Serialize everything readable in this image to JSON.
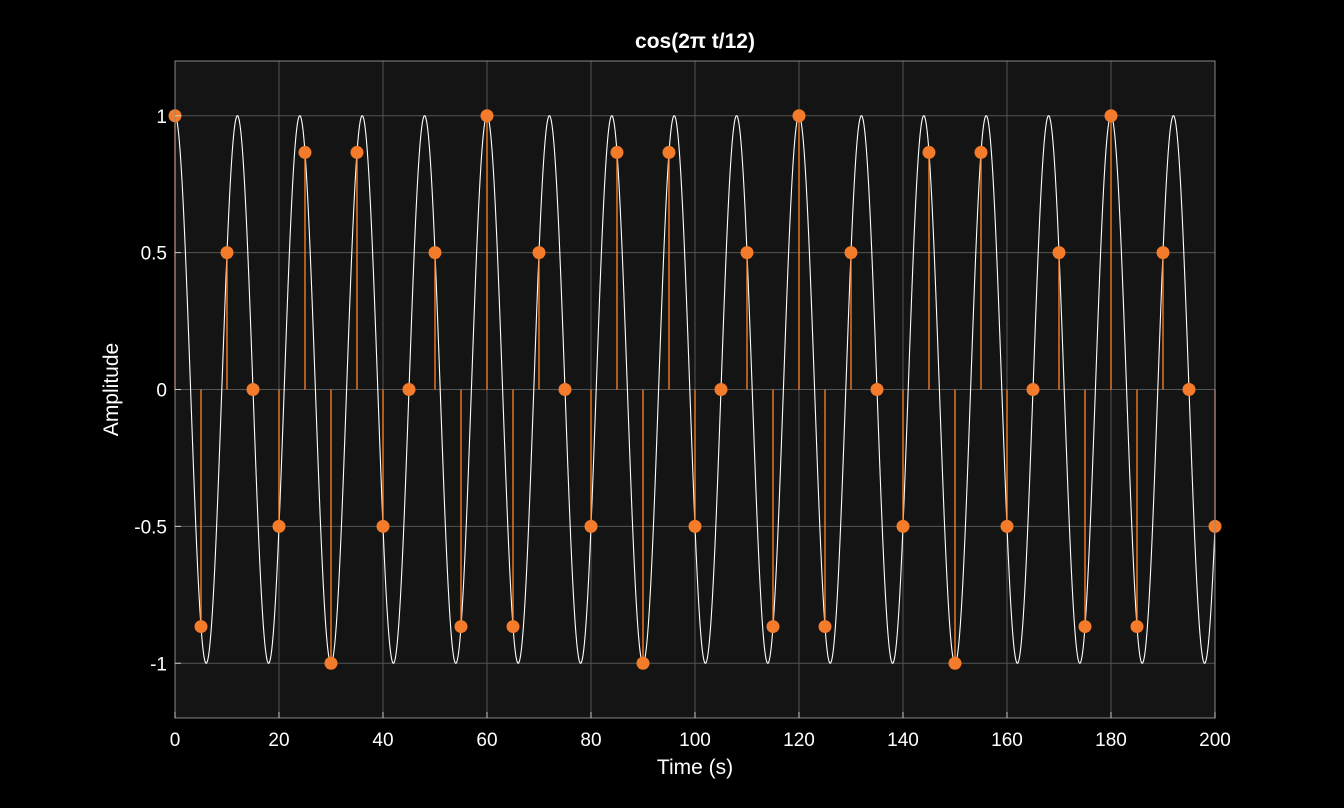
{
  "chart_data": {
    "type": "line",
    "title": "cos(2π  t/12)",
    "xlabel": "Time (s)",
    "ylabel": "Amplitude",
    "xlim": [
      0,
      200
    ],
    "ylim": [
      -1.2,
      1.2
    ],
    "xticks": [
      0,
      20,
      40,
      60,
      80,
      100,
      120,
      140,
      160,
      180,
      200
    ],
    "yticks": [
      1,
      0.5,
      0,
      -0.5,
      -1
    ],
    "xtick_labels": [
      "0",
      "20",
      "40",
      "60",
      "80",
      "100",
      "120",
      "140",
      "160",
      "180",
      "200"
    ],
    "ytick_labels": [
      "1",
      "0.5",
      "0",
      "-0.5",
      "-1"
    ],
    "grid": true,
    "colors": {
      "figure_bg": "#000000",
      "axes_bg": "#141414",
      "grid": "#555555",
      "curve": "#ffffff",
      "stem": "#f47b2a"
    },
    "series": [
      {
        "kind": "continuous",
        "function": "cos(2*pi*t/12)",
        "period": 12
      },
      {
        "kind": "stem",
        "marker": "filled-circle",
        "x": [
          0,
          5,
          10,
          15,
          20,
          25,
          30,
          35,
          40,
          45,
          50,
          55,
          60,
          65,
          70,
          75,
          80,
          85,
          90,
          95,
          100,
          105,
          110,
          115,
          120,
          125,
          130,
          135,
          140,
          145,
          150,
          155,
          160,
          165,
          170,
          175,
          180,
          185,
          190,
          195,
          200
        ],
        "y": [
          1,
          -0.866,
          0.5,
          0,
          -0.5,
          0.866,
          -1,
          0.866,
          -0.5,
          0,
          0.5,
          -0.866,
          1,
          -0.866,
          0.5,
          0,
          -0.5,
          0.866,
          -1,
          0.866,
          -0.5,
          0,
          0.5,
          -0.866,
          1,
          -0.866,
          0.5,
          0,
          -0.5,
          0.866,
          -1,
          0.866,
          -0.5,
          0,
          0.5,
          -0.866,
          1,
          -0.866,
          0.5,
          0,
          -0.5
        ]
      }
    ]
  }
}
